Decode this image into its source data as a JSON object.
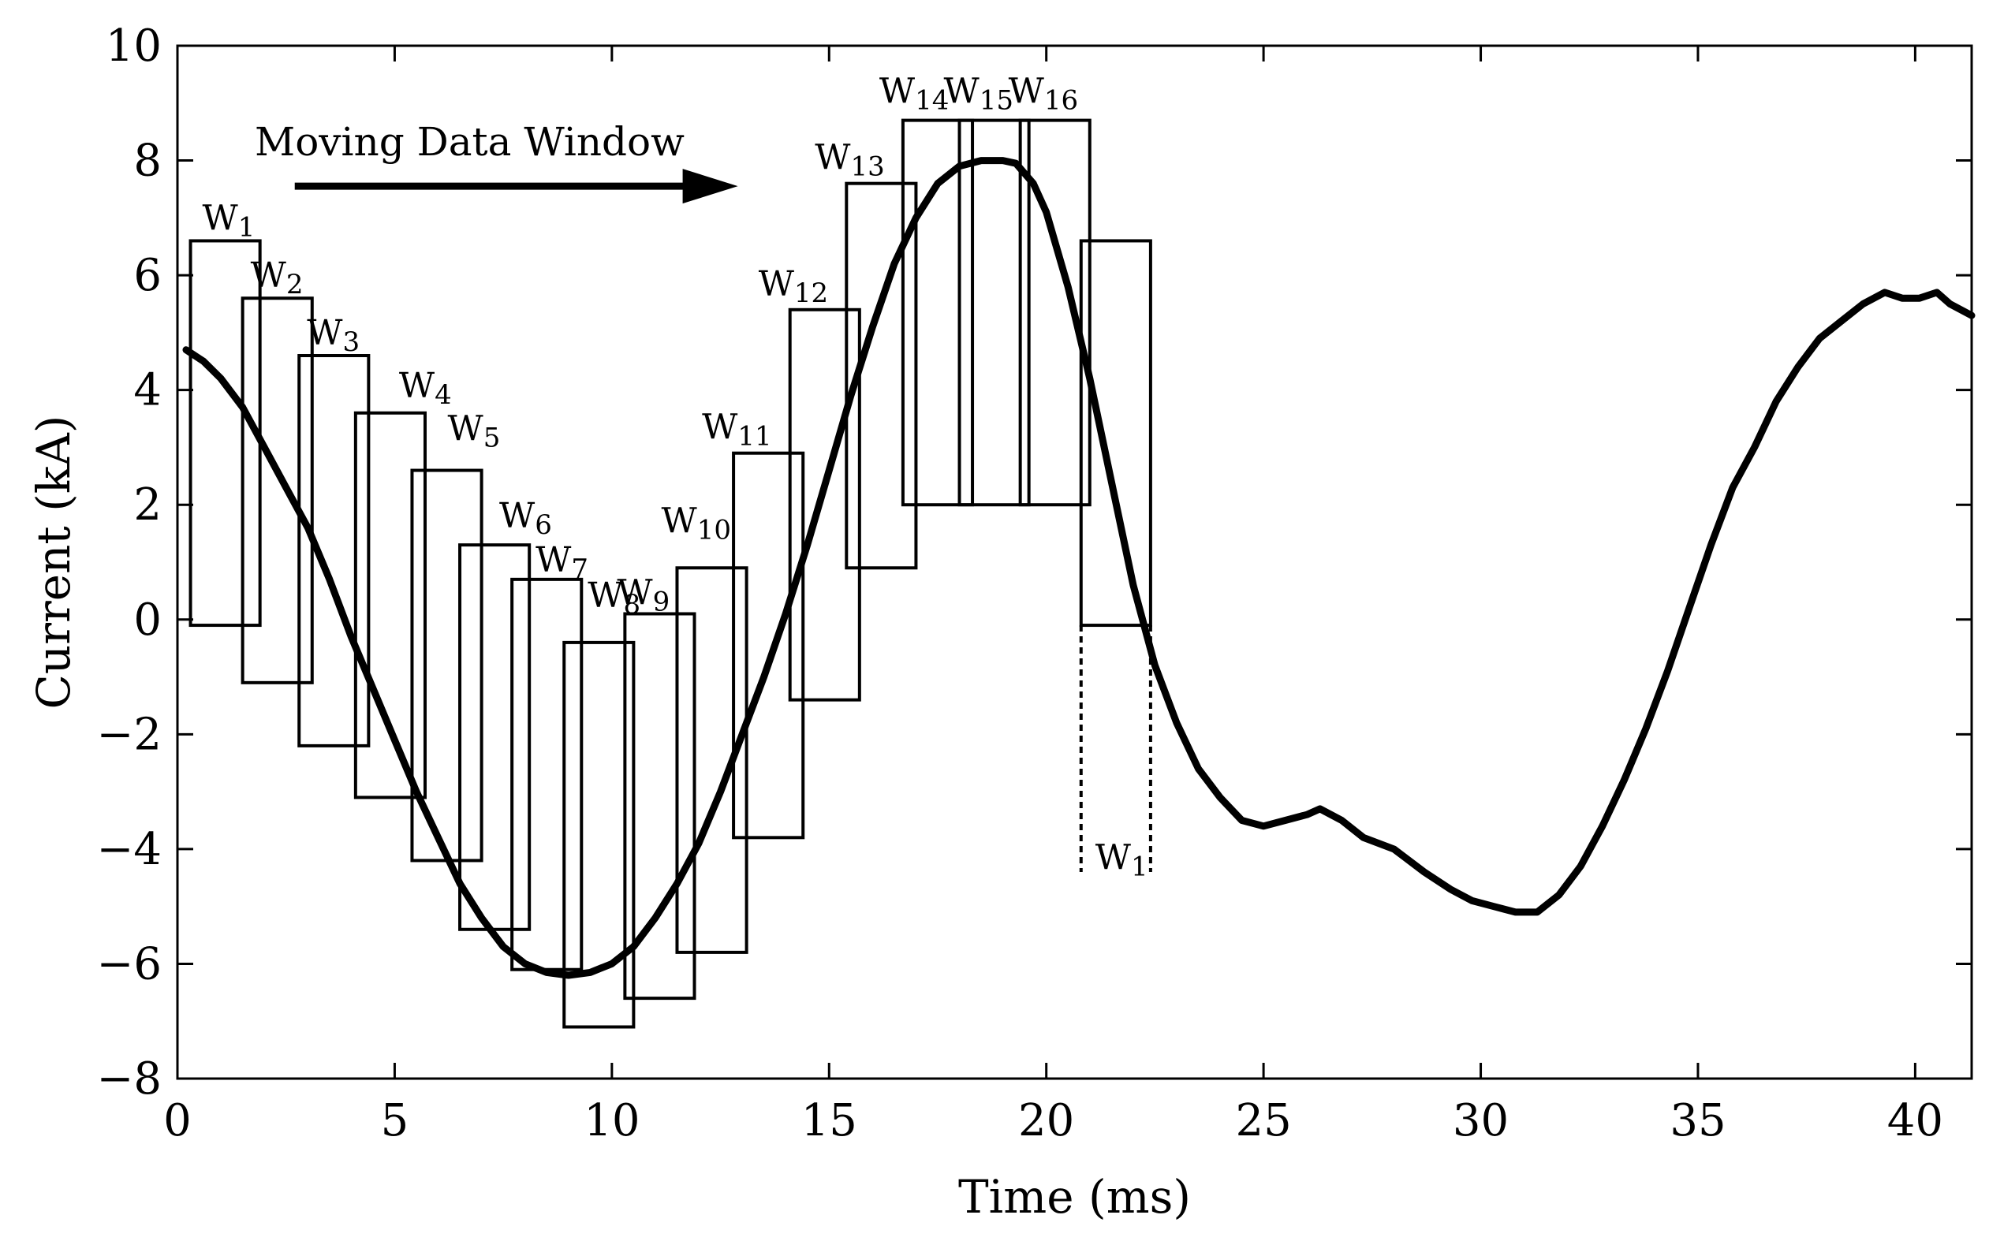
{
  "chart_data": {
    "type": "line",
    "title": "",
    "xlabel": "Time (ms)",
    "ylabel": "Current (kA)",
    "xlim": [
      0,
      41.3
    ],
    "ylim": [
      -8,
      10
    ],
    "xticks": [
      0,
      5,
      10,
      15,
      20,
      25,
      30,
      35,
      40
    ],
    "yticks": [
      -8,
      -6,
      -4,
      -2,
      0,
      2,
      4,
      6,
      8,
      10
    ],
    "xtick_labels": [
      "0",
      "5",
      "10",
      "15",
      "20",
      "25",
      "30",
      "35",
      "40"
    ],
    "ytick_labels": [
      "−8",
      "−6",
      "−4",
      "−2",
      "0",
      "2",
      "4",
      "6",
      "8",
      "10"
    ],
    "grid": false,
    "series": [
      {
        "name": "Current",
        "x": [
          0.2,
          0.6,
          1.0,
          1.5,
          2.0,
          2.5,
          3.0,
          3.5,
          4.0,
          4.5,
          5.0,
          5.5,
          6.0,
          6.5,
          7.0,
          7.5,
          8.0,
          8.5,
          9.0,
          9.5,
          10.0,
          10.5,
          11.0,
          11.5,
          12.0,
          12.5,
          13.0,
          13.5,
          14.0,
          14.5,
          15.0,
          15.5,
          16.0,
          16.5,
          17.0,
          17.5,
          18.0,
          18.5,
          19.0,
          19.3,
          19.7,
          20.0,
          20.5,
          21.0,
          21.5,
          22.0,
          22.5,
          23.0,
          23.5,
          24.0,
          24.5,
          25.0,
          25.5,
          26.0,
          26.3,
          26.8,
          27.3,
          28.0,
          28.7,
          29.3,
          29.8,
          30.3,
          30.8,
          31.3,
          31.8,
          32.3,
          32.8,
          33.3,
          33.8,
          34.3,
          34.8,
          35.3,
          35.8,
          36.3,
          36.8,
          37.3,
          37.8,
          38.3,
          38.8,
          39.3,
          39.7,
          40.1,
          40.5,
          40.8,
          41.3
        ],
        "y": [
          4.7,
          4.5,
          4.2,
          3.7,
          3.0,
          2.3,
          1.6,
          0.7,
          -0.3,
          -1.2,
          -2.1,
          -3.0,
          -3.8,
          -4.6,
          -5.2,
          -5.7,
          -6.0,
          -6.15,
          -6.2,
          -6.15,
          -6.0,
          -5.7,
          -5.2,
          -4.6,
          -3.9,
          -3.0,
          -2.0,
          -1.0,
          0.1,
          1.3,
          2.6,
          3.9,
          5.1,
          6.2,
          7.0,
          7.6,
          7.9,
          8.0,
          8.0,
          7.95,
          7.6,
          7.1,
          5.8,
          4.2,
          2.4,
          0.6,
          -0.8,
          -1.8,
          -2.6,
          -3.1,
          -3.5,
          -3.6,
          -3.5,
          -3.4,
          -3.3,
          -3.5,
          -3.8,
          -4.0,
          -4.4,
          -4.7,
          -4.9,
          -5.0,
          -5.1,
          -5.1,
          -4.8,
          -4.3,
          -3.6,
          -2.8,
          -1.9,
          -0.9,
          0.2,
          1.3,
          2.3,
          3.0,
          3.8,
          4.4,
          4.9,
          5.2,
          5.5,
          5.7,
          5.6,
          5.6,
          5.7,
          5.5,
          5.3
        ]
      }
    ],
    "windows": [
      {
        "label": "W",
        "sub": "1",
        "x0": 0.3,
        "x1": 1.9,
        "y0": -0.1,
        "y1": 6.6
      },
      {
        "label": "W",
        "sub": "2",
        "x0": 1.5,
        "x1": 3.1,
        "y0": -1.1,
        "y1": 5.6
      },
      {
        "label": "W",
        "sub": "3",
        "x0": 2.8,
        "x1": 4.4,
        "y0": -2.2,
        "y1": 4.6
      },
      {
        "label": "W",
        "sub": "4",
        "x0": 4.1,
        "x1": 5.7,
        "y0": -3.1,
        "y1": 3.6
      },
      {
        "label": "W",
        "sub": "5",
        "x0": 5.4,
        "x1": 7.0,
        "y0": -4.2,
        "y1": 2.6
      },
      {
        "label": "W",
        "sub": "6",
        "x0": 6.5,
        "x1": 8.1,
        "y0": -5.4,
        "y1": 1.3
      },
      {
        "label": "W",
        "sub": "7",
        "x0": 7.7,
        "x1": 9.3,
        "y0": -6.1,
        "y1": 0.7
      },
      {
        "label": "W",
        "sub": "8",
        "x0": 8.9,
        "x1": 10.5,
        "y0": -7.1,
        "y1": -0.4
      },
      {
        "label": "W",
        "sub": "9",
        "x0": 10.3,
        "x1": 11.9,
        "y0": -6.6,
        "y1": 0.1
      },
      {
        "label": "W",
        "sub": "10",
        "x0": 11.5,
        "x1": 13.1,
        "y0": -5.8,
        "y1": 0.9
      },
      {
        "label": "W",
        "sub": "11",
        "x0": 12.8,
        "x1": 14.4,
        "y0": -3.8,
        "y1": 2.9
      },
      {
        "label": "W",
        "sub": "12",
        "x0": 14.1,
        "x1": 15.7,
        "y0": -1.4,
        "y1": 5.4
      },
      {
        "label": "W",
        "sub": "13",
        "x0": 15.4,
        "x1": 17.0,
        "y0": 0.9,
        "y1": 7.6
      },
      {
        "label": "W",
        "sub": "14",
        "x0": 16.7,
        "x1": 18.3,
        "y0": 2.0,
        "y1": 8.7
      },
      {
        "label": "W",
        "sub": "15",
        "x0": 18.0,
        "x1": 19.6,
        "y0": 2.0,
        "y1": 8.7
      },
      {
        "label": "W",
        "sub": "16",
        "x0": 19.4,
        "x1": 21.0,
        "y0": 2.0,
        "y1": 8.7
      },
      {
        "label": "W",
        "sub": "1",
        "x0": 20.8,
        "x1": 22.4,
        "y0": -0.1,
        "y1": 6.6
      }
    ],
    "dashed_window": {
      "label": "W",
      "sub": "1",
      "x0": 20.8,
      "x1": 22.4,
      "y_bottom": -4.4
    },
    "annotations": [
      {
        "text": "Moving Data Window",
        "x_from": 2.7,
        "x_to": 12.9,
        "y": 7.8
      }
    ]
  }
}
